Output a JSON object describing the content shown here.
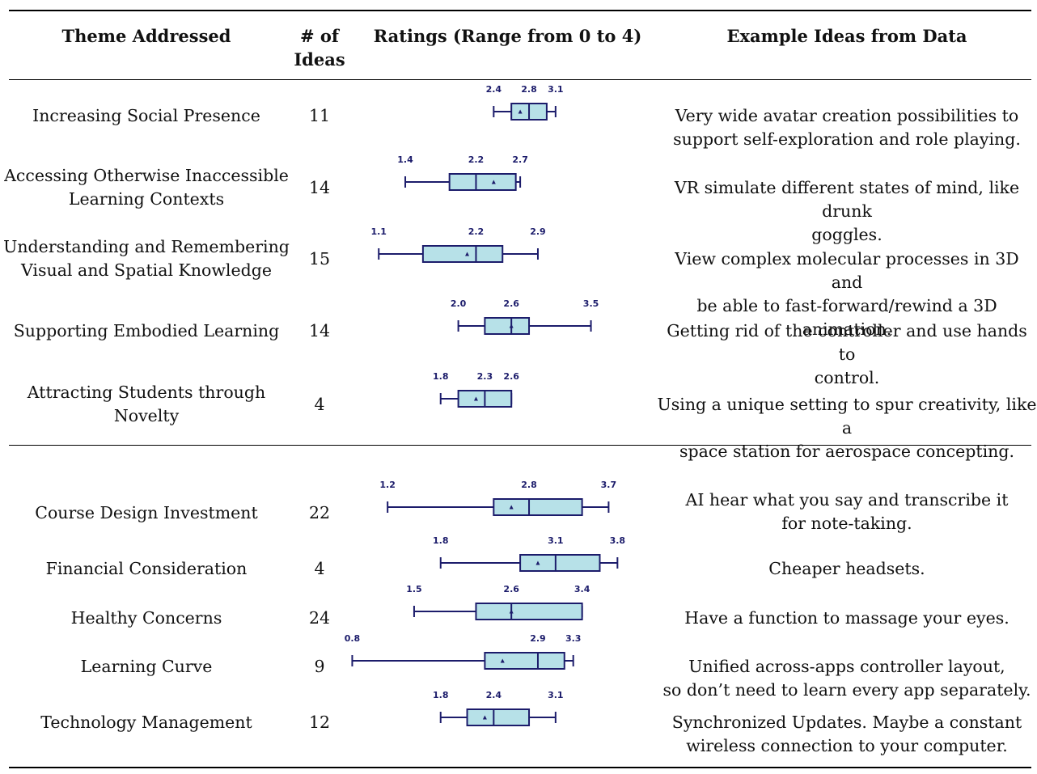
{
  "headers": {
    "theme": "Theme Addressed",
    "ideas_line1": "# of",
    "ideas_line2": "Ideas",
    "ratings": "Ratings (Range from 0 to 4)",
    "examples": "Example Ideas from Data"
  },
  "colors": {
    "box_fill": "#b7e1e8",
    "box_stroke": "#1c1c6b"
  },
  "chart_data": {
    "type": "box",
    "title": "Ratings (Range from 0 to 4)",
    "xlim": [
      0,
      4
    ],
    "rows": [
      {
        "theme": [
          "Increasing Social Presence"
        ],
        "ideas": "11",
        "example": [
          "Very wide avatar creation possibilities to",
          "support self-exploration and role playing."
        ],
        "whisker_low": 2.4,
        "q1": 2.6,
        "median": 2.8,
        "q3": 3.0,
        "whisker_high": 3.1,
        "mean": 2.7,
        "labels": [
          "2.4",
          "2.8",
          "3.1"
        ]
      },
      {
        "theme": [
          "Accessing Otherwise Inaccessible",
          "Learning Contexts"
        ],
        "ideas": "14",
        "example": [
          "VR simulate different states of mind, like drunk",
          "goggles."
        ],
        "whisker_low": 1.4,
        "q1": 1.9,
        "median": 2.2,
        "q3": 2.65,
        "whisker_high": 2.7,
        "mean": 2.4,
        "labels": [
          "1.4",
          "2.2",
          "2.7"
        ]
      },
      {
        "theme": [
          "Understanding and Remembering",
          "Visual and Spatial Knowledge"
        ],
        "ideas": "15",
        "example": [
          "View complex molecular processes in 3D and",
          "be able to fast-forward/rewind a 3D animation."
        ],
        "whisker_low": 1.1,
        "q1": 1.6,
        "median": 2.2,
        "q3": 2.5,
        "whisker_high": 2.9,
        "mean": 2.1,
        "labels": [
          "1.1",
          "2.2",
          "2.9"
        ]
      },
      {
        "theme": [
          "Supporting Embodied Learning"
        ],
        "ideas": "14",
        "example": [
          "Getting rid of the controller and use hands to",
          "control."
        ],
        "whisker_low": 2.0,
        "q1": 2.3,
        "median": 2.6,
        "q3": 2.8,
        "whisker_high": 3.5,
        "mean": 2.6,
        "labels": [
          "2.0",
          "2.6",
          "3.5"
        ]
      },
      {
        "theme": [
          "Attracting Students through",
          "Novelty"
        ],
        "ideas": "4",
        "example": [
          "Using a unique setting to spur creativity, like a",
          "space station for aerospace concepting."
        ],
        "whisker_low": 1.8,
        "q1": 2.0,
        "median": 2.3,
        "q3": 2.6,
        "whisker_high": 2.6,
        "mean": 2.2,
        "labels": [
          "1.8",
          "2.3",
          "2.6"
        ]
      },
      {
        "theme": [
          "Course Design Investment"
        ],
        "ideas": "22",
        "example": [
          "AI hear what you say and transcribe it",
          "for note-taking."
        ],
        "whisker_low": 1.2,
        "q1": 2.4,
        "median": 2.8,
        "q3": 3.4,
        "whisker_high": 3.7,
        "mean": 2.6,
        "labels": [
          "1.2",
          "2.8",
          "3.7"
        ]
      },
      {
        "theme": [
          "Financial Consideration"
        ],
        "ideas": "4",
        "example": [
          "Cheaper headsets."
        ],
        "whisker_low": 1.8,
        "q1": 2.7,
        "median": 3.1,
        "q3": 3.6,
        "whisker_high": 3.8,
        "mean": 2.9,
        "labels": [
          "1.8",
          "3.1",
          "3.8"
        ]
      },
      {
        "theme": [
          "Healthy Concerns"
        ],
        "ideas": "24",
        "example": [
          "Have a function to massage your eyes."
        ],
        "whisker_low": 1.5,
        "q1": 2.2,
        "median": 2.6,
        "q3": 3.4,
        "whisker_high": 3.4,
        "mean": 2.6,
        "labels": [
          "1.5",
          "2.6",
          "3.4"
        ]
      },
      {
        "theme": [
          "Learning Curve"
        ],
        "ideas": "9",
        "example": [
          "Unified across-apps controller layout,",
          "so don’t need to learn every app separately."
        ],
        "whisker_low": 0.8,
        "q1": 2.3,
        "median": 2.9,
        "q3": 3.2,
        "whisker_high": 3.3,
        "mean": 2.5,
        "labels": [
          "0.8",
          "2.9",
          "3.3"
        ]
      },
      {
        "theme": [
          "Technology Management"
        ],
        "ideas": "12",
        "example": [
          "Synchronized Updates. Maybe a constant",
          "wireless connection to your computer."
        ],
        "whisker_low": 1.8,
        "q1": 2.1,
        "median": 2.4,
        "q3": 2.8,
        "whisker_high": 3.1,
        "mean": 2.3,
        "labels": [
          "1.8",
          "2.4",
          "3.1"
        ]
      }
    ]
  }
}
